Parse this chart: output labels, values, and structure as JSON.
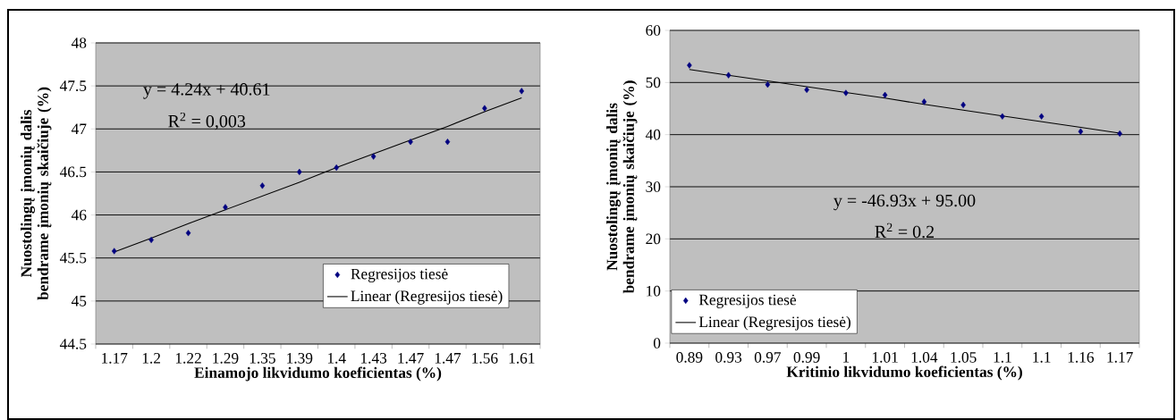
{
  "chart_data": [
    {
      "type": "scatter",
      "xlabel": "Einamojo likvidumo koeficientas (%)",
      "ylabel": "Nuostolingų įmonių dalis bendrame įmonių skaičiuje (%)",
      "categories": [
        "1.17",
        "1.2",
        "1.22",
        "1.29",
        "1.35",
        "1.39",
        "1.4",
        "1.43",
        "1.47",
        "1.47",
        "1.56",
        "1.61"
      ],
      "series": [
        {
          "name": "Regresijos tiesė",
          "color": "#000080",
          "marker": "diamond",
          "values": [
            45.58,
            45.71,
            45.79,
            46.09,
            46.34,
            46.5,
            46.55,
            46.68,
            46.85,
            46.85,
            47.24,
            47.44
          ]
        },
        {
          "name": "Linear (Regresijos tiesė)",
          "type": "line",
          "color": "#000000",
          "marker": "none",
          "line_style": "solid",
          "values": [
            45.57,
            45.73,
            45.9,
            46.06,
            46.22,
            46.38,
            46.55,
            46.71,
            46.87,
            47.03,
            47.2,
            47.36
          ]
        }
      ],
      "ylim": [
        44.5,
        48
      ],
      "yticks": [
        44.5,
        45,
        45.5,
        46,
        46.5,
        47,
        47.5,
        48
      ],
      "grid": "y",
      "legend": "bottom right",
      "annotations": [
        "y = 4.24x + 40.61",
        "R$^{2}$ = 0,003"
      ]
    },
    {
      "type": "scatter",
      "xlabel": "Kritinio likvidumo koeficientas (%)",
      "ylabel": "Nuostolingų įmonių dalis bendrame įmonių skaičiuje (%)",
      "categories": [
        "0.89",
        "0.93",
        "0.97",
        "0.99",
        "1",
        "1.01",
        "1.04",
        "1.05",
        "1.1",
        "1.1",
        "1.16",
        "1.17"
      ],
      "series": [
        {
          "name": "Regresijos tiesė",
          "color": "#000080",
          "marker": "diamond",
          "values": [
            53.3,
            51.4,
            49.6,
            48.6,
            48.0,
            47.6,
            46.3,
            45.7,
            43.5,
            43.5,
            40.6,
            40.2
          ]
        },
        {
          "name": "Linear (Regresijos tiesė)",
          "type": "line",
          "color": "#000000",
          "marker": "none",
          "line_style": "solid",
          "values": [
            52.5,
            51.4,
            50.3,
            49.2,
            48.1,
            47.0,
            45.8,
            44.7,
            43.6,
            42.5,
            41.4,
            40.3
          ]
        }
      ],
      "ylim": [
        0,
        60
      ],
      "yticks": [
        0,
        10,
        20,
        30,
        40,
        50,
        60
      ],
      "grid": "y",
      "legend": "bottom left",
      "annotations": [
        "y = -46.93x + 95.00",
        "R$^{2}$ = 0.2"
      ]
    }
  ]
}
